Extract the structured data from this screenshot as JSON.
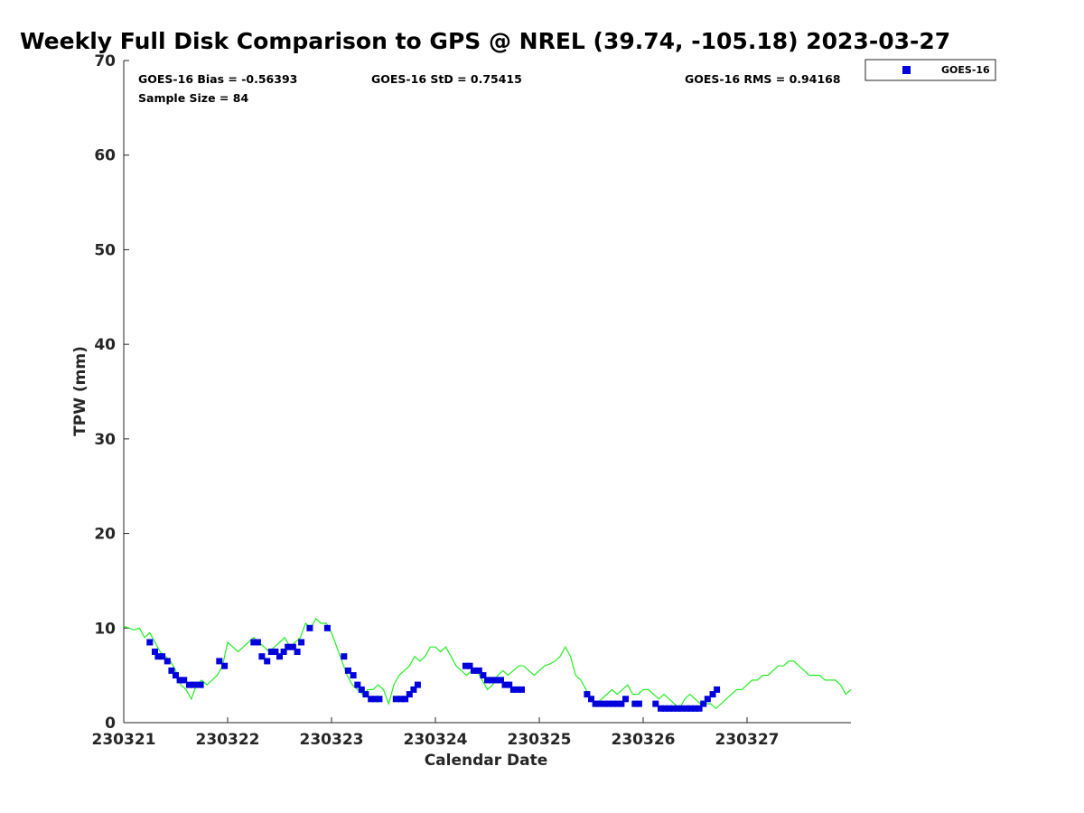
{
  "chart_data": {
    "type": "scatter",
    "title": "Weekly Full Disk Comparison to GPS @ NREL (39.74, -105.18) 2023-03-27",
    "xlabel": "Calendar Date",
    "ylabel": "TPW (mm)",
    "xlim": [
      0,
      7
    ],
    "ylim": [
      0,
      70
    ],
    "xticks": [
      0,
      1,
      2,
      3,
      4,
      5,
      6
    ],
    "xtick_labels": [
      "230321",
      "230322",
      "230323",
      "230324",
      "230325",
      "230326",
      "230327"
    ],
    "yticks": [
      0,
      10,
      20,
      30,
      40,
      50,
      60,
      70
    ],
    "ytick_labels": [
      "0",
      "10",
      "20",
      "30",
      "40",
      "50",
      "60",
      "70"
    ],
    "stats": {
      "bias": "GOES-16 Bias = -0.56393",
      "std": "GOES-16 StD = 0.75415",
      "rms": "GOES-16 RMS = 0.94168",
      "sample": "Sample Size = 84"
    },
    "legend": {
      "position": "top-right",
      "entries": [
        "GOES-16"
      ]
    },
    "colors": {
      "goes": "#0000dd",
      "gps": "#22ee22"
    },
    "series": [
      {
        "name": "GPS",
        "kind": "line",
        "x": [
          0,
          0.05,
          0.1,
          0.15,
          0.2,
          0.25,
          0.3,
          0.35,
          0.4,
          0.45,
          0.5,
          0.55,
          0.6,
          0.65,
          0.7,
          0.75,
          0.8,
          0.85,
          0.9,
          0.95,
          1.0,
          1.05,
          1.1,
          1.15,
          1.2,
          1.25,
          1.3,
          1.35,
          1.4,
          1.45,
          1.5,
          1.55,
          1.6,
          1.65,
          1.7,
          1.75,
          1.8,
          1.85,
          1.9,
          1.95,
          2.0,
          2.05,
          2.1,
          2.15,
          2.2,
          2.25,
          2.3,
          2.35,
          2.4,
          2.45,
          2.5,
          2.55,
          2.6,
          2.65,
          2.7,
          2.75,
          2.8,
          2.85,
          2.9,
          2.95,
          3.0,
          3.05,
          3.1,
          3.15,
          3.2,
          3.25,
          3.3,
          3.35,
          3.4,
          3.45,
          3.5,
          3.55,
          3.6,
          3.65,
          3.7,
          3.75,
          3.8,
          3.85,
          3.9,
          3.95,
          4.0,
          4.05,
          4.1,
          4.15,
          4.2,
          4.25,
          4.3,
          4.35,
          4.4,
          4.45,
          4.5,
          4.55,
          4.6,
          4.65,
          4.7,
          4.75,
          4.8,
          4.85,
          4.9,
          4.95,
          5.0,
          5.05,
          5.1,
          5.15,
          5.2,
          5.25,
          5.3,
          5.35,
          5.4,
          5.45,
          5.5,
          5.55,
          5.6,
          5.65,
          5.7,
          5.75,
          5.8,
          5.85,
          5.9,
          5.95,
          6.0,
          6.05,
          6.1,
          6.15,
          6.2,
          6.25,
          6.3,
          6.35,
          6.4,
          6.45,
          6.5,
          6.55,
          6.6,
          6.65,
          6.7,
          6.75,
          6.8,
          6.85,
          6.9,
          6.95,
          7.0
        ],
        "values": [
          10.2,
          10.0,
          9.8,
          10.0,
          9.0,
          9.5,
          8.5,
          7.5,
          7.0,
          6.5,
          5.5,
          4.0,
          3.5,
          2.5,
          4.0,
          4.5,
          4.0,
          4.5,
          5.0,
          6.0,
          8.5,
          8.0,
          7.5,
          8.0,
          8.5,
          9.0,
          8.5,
          8.0,
          7.5,
          8.0,
          8.5,
          9.0,
          8.0,
          8.5,
          9.0,
          10.5,
          10.0,
          11.0,
          10.5,
          10.5,
          9.5,
          8.0,
          6.5,
          5.0,
          4.0,
          3.5,
          3.0,
          3.5,
          3.5,
          4.0,
          3.5,
          2.0,
          4.0,
          5.0,
          5.5,
          6.0,
          7.0,
          6.5,
          7.0,
          8.0,
          8.0,
          7.5,
          8.0,
          7.0,
          6.0,
          5.5,
          5.0,
          5.5,
          5.5,
          4.5,
          3.5,
          4.0,
          5.0,
          5.5,
          5.0,
          5.5,
          6.0,
          6.0,
          5.5,
          5.0,
          5.5,
          6.0,
          6.2,
          6.5,
          7.0,
          8.0,
          7.0,
          5.0,
          4.5,
          3.5,
          2.5,
          2.0,
          2.5,
          3.0,
          3.5,
          3.0,
          3.5,
          4.0,
          3.0,
          3.0,
          3.5,
          3.5,
          3.0,
          2.5,
          3.0,
          2.5,
          2.0,
          1.5,
          2.5,
          3.0,
          2.5,
          2.0,
          2.0,
          2.0,
          1.5,
          2.0,
          2.5,
          3.0,
          3.5,
          3.5,
          4.0,
          4.5,
          4.5,
          5.0,
          5.0,
          5.5,
          6.0,
          6.0,
          6.5,
          6.5,
          6.0,
          5.5,
          5.0,
          5.0,
          5.0,
          4.5,
          4.5,
          4.5,
          4.0,
          3.0,
          3.5
        ]
      },
      {
        "name": "GOES-16",
        "kind": "scatter",
        "x": [
          0.25,
          0.3,
          0.33,
          0.37,
          0.42,
          0.46,
          0.5,
          0.54,
          0.58,
          0.63,
          0.68,
          0.74,
          0.92,
          0.97,
          1.25,
          1.29,
          1.33,
          1.38,
          1.42,
          1.46,
          1.5,
          1.54,
          1.58,
          1.63,
          1.67,
          1.71,
          1.79,
          1.96,
          2.12,
          2.16,
          2.21,
          2.25,
          2.29,
          2.33,
          2.38,
          2.42,
          2.46,
          2.62,
          2.67,
          2.71,
          2.75,
          2.79,
          2.83,
          3.29,
          3.33,
          3.37,
          3.42,
          3.46,
          3.5,
          3.54,
          3.58,
          3.63,
          3.67,
          3.71,
          3.75,
          3.79,
          3.83,
          4.46,
          4.5,
          4.54,
          4.58,
          4.63,
          4.67,
          4.71,
          4.75,
          4.79,
          4.83,
          4.92,
          4.96,
          5.12,
          5.17,
          5.21,
          5.25,
          5.29,
          5.33,
          5.37,
          5.42,
          5.46,
          5.5,
          5.54,
          5.58,
          5.62,
          5.67,
          5.71
        ],
        "values": [
          8.5,
          7.5,
          7.0,
          7.0,
          6.5,
          5.5,
          5.0,
          4.5,
          4.5,
          4.0,
          4.0,
          4.0,
          6.5,
          6.0,
          8.5,
          8.5,
          7.0,
          6.5,
          7.5,
          7.5,
          7.0,
          7.5,
          8.0,
          8.0,
          7.5,
          8.5,
          10.0,
          10.0,
          7.0,
          5.5,
          5.0,
          4.0,
          3.5,
          3.0,
          2.5,
          2.5,
          2.5,
          2.5,
          2.5,
          2.5,
          3.0,
          3.5,
          4.0,
          6.0,
          6.0,
          5.5,
          5.5,
          5.0,
          4.5,
          4.5,
          4.5,
          4.5,
          4.0,
          4.0,
          3.5,
          3.5,
          3.5,
          3.0,
          2.5,
          2.0,
          2.0,
          2.0,
          2.0,
          2.0,
          2.0,
          2.0,
          2.5,
          2.0,
          2.0,
          2.0,
          1.5,
          1.5,
          1.5,
          1.5,
          1.5,
          1.5,
          1.5,
          1.5,
          1.5,
          1.5,
          2.0,
          2.5,
          3.0,
          3.5
        ]
      }
    ]
  }
}
